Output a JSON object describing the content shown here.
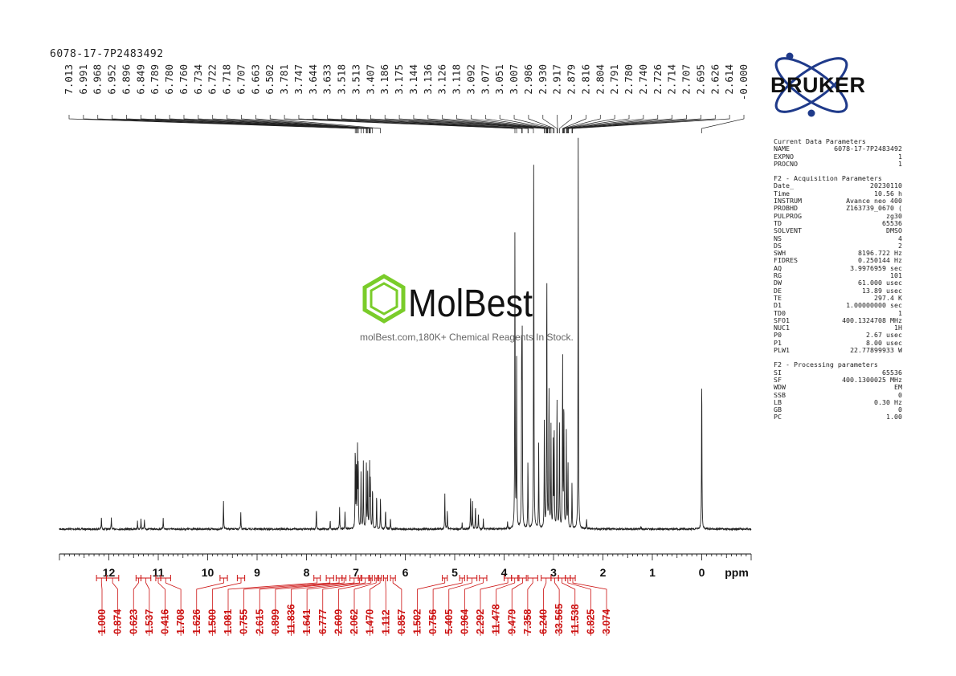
{
  "sample_title": "6078-17-7P2483492",
  "peak_labels": [
    "7.013",
    "6.991",
    "6.968",
    "6.952",
    "6.896",
    "6.849",
    "6.789",
    "6.780",
    "6.760",
    "6.734",
    "6.722",
    "6.718",
    "6.707",
    "6.663",
    "6.502",
    "3.781",
    "3.747",
    "3.644",
    "3.633",
    "3.518",
    "3.513",
    "3.407",
    "3.186",
    "3.175",
    "3.144",
    "3.136",
    "3.126",
    "3.118",
    "3.092",
    "3.077",
    "3.051",
    "3.007",
    "2.986",
    "2.930",
    "2.917",
    "2.879",
    "2.816",
    "2.804",
    "2.791",
    "2.780",
    "2.740",
    "2.726",
    "2.714",
    "2.707",
    "2.695",
    "2.626",
    "2.614",
    "-0.000"
  ],
  "integrals": [
    {
      "value": "1.000",
      "from": 12.25,
      "to": 12.05
    },
    {
      "value": "0.874",
      "from": 12.05,
      "to": 11.8
    },
    {
      "value": "0.623",
      "from": 11.45,
      "to": 11.35
    },
    {
      "value": "1.537",
      "from": 11.35,
      "to": 11.15
    },
    {
      "value": "0.416",
      "from": 11.05,
      "to": 10.95
    },
    {
      "value": "1.708",
      "from": 10.95,
      "to": 10.75
    },
    {
      "value": "1.626",
      "from": 9.75,
      "to": 9.6
    },
    {
      "value": "1.500",
      "from": 9.4,
      "to": 9.25
    },
    {
      "value": "1.081",
      "from": 7.85,
      "to": 7.72
    },
    {
      "value": "0.755",
      "from": 7.6,
      "to": 7.45
    },
    {
      "value": "2.615",
      "from": 7.4,
      "to": 7.28
    },
    {
      "value": "0.899",
      "from": 7.28,
      "to": 7.2
    },
    {
      "value": "11.836",
      "from": 7.12,
      "to": 6.95
    },
    {
      "value": "1.641",
      "from": 6.95,
      "to": 6.9
    },
    {
      "value": "6.777",
      "from": 6.88,
      "to": 6.74
    },
    {
      "value": "2.609",
      "from": 6.72,
      "to": 6.67
    },
    {
      "value": "2.062",
      "from": 6.62,
      "to": 6.56
    },
    {
      "value": "1.470",
      "from": 6.54,
      "to": 6.48
    },
    {
      "value": "1.112",
      "from": 6.44,
      "to": 6.36
    },
    {
      "value": "0.857",
      "from": 6.3,
      "to": 6.2
    },
    {
      "value": "1.502",
      "from": 5.25,
      "to": 5.15
    },
    {
      "value": "0.756",
      "from": 4.9,
      "to": 4.8
    },
    {
      "value": "5.405",
      "from": 4.75,
      "to": 4.55
    },
    {
      "value": "0.964",
      "from": 4.5,
      "to": 4.35
    },
    {
      "value": "2.292",
      "from": 4.0,
      "to": 3.85
    },
    {
      "value": "11.478",
      "from": 3.85,
      "to": 3.72
    },
    {
      "value": "9.479",
      "from": 3.7,
      "to": 3.55
    },
    {
      "value": "7.358",
      "from": 3.52,
      "to": 3.32
    },
    {
      "value": "6.240",
      "from": 3.25,
      "to": 3.05
    },
    {
      "value": "33.565",
      "from": 3.05,
      "to": 2.9
    },
    {
      "value": "11.538",
      "from": 2.9,
      "to": 2.76
    },
    {
      "value": "6.825",
      "from": 2.76,
      "to": 2.66
    },
    {
      "value": "3.074",
      "from": 2.66,
      "to": 2.56
    }
  ],
  "chart_data": {
    "type": "line",
    "xlabel": "ppm",
    "xlim": [
      13.0,
      -1.0
    ],
    "x_ticks": [
      "12",
      "11",
      "10",
      "9",
      "8",
      "7",
      "6",
      "5",
      "4",
      "3",
      "2",
      "1",
      "0"
    ],
    "x_tick_values": [
      12,
      11,
      10,
      9,
      8,
      7,
      6,
      5,
      4,
      3,
      2,
      1,
      0
    ],
    "ylim": [
      0,
      1.0
    ],
    "series": [
      {
        "peaks": [
          {
            "x": 12.15,
            "y": 0.03
          },
          {
            "x": 11.95,
            "y": 0.028
          },
          {
            "x": 11.42,
            "y": 0.02
          },
          {
            "x": 11.35,
            "y": 0.025
          },
          {
            "x": 11.28,
            "y": 0.022
          },
          {
            "x": 10.9,
            "y": 0.03
          },
          {
            "x": 9.68,
            "y": 0.075
          },
          {
            "x": 9.33,
            "y": 0.045
          },
          {
            "x": 7.8,
            "y": 0.055
          },
          {
            "x": 7.52,
            "y": 0.022
          },
          {
            "x": 7.33,
            "y": 0.055
          },
          {
            "x": 7.22,
            "y": 0.045
          },
          {
            "x": 7.013,
            "y": 0.22
          },
          {
            "x": 6.991,
            "y": 0.18
          },
          {
            "x": 6.968,
            "y": 0.21
          },
          {
            "x": 6.952,
            "y": 0.17
          },
          {
            "x": 6.896,
            "y": 0.15
          },
          {
            "x": 6.849,
            "y": 0.17
          },
          {
            "x": 6.789,
            "y": 0.18
          },
          {
            "x": 6.76,
            "y": 0.15
          },
          {
            "x": 6.722,
            "y": 0.16
          },
          {
            "x": 6.707,
            "y": 0.13
          },
          {
            "x": 6.663,
            "y": 0.11
          },
          {
            "x": 6.58,
            "y": 0.09
          },
          {
            "x": 6.502,
            "y": 0.08
          },
          {
            "x": 6.4,
            "y": 0.05
          },
          {
            "x": 6.3,
            "y": 0.03
          },
          {
            "x": 5.2,
            "y": 0.09
          },
          {
            "x": 5.15,
            "y": 0.05
          },
          {
            "x": 4.85,
            "y": 0.015
          },
          {
            "x": 4.68,
            "y": 0.085
          },
          {
            "x": 4.64,
            "y": 0.07
          },
          {
            "x": 4.58,
            "y": 0.06
          },
          {
            "x": 4.52,
            "y": 0.04
          },
          {
            "x": 4.42,
            "y": 0.025
          },
          {
            "x": 3.93,
            "y": 0.02
          },
          {
            "x": 3.781,
            "y": 0.78
          },
          {
            "x": 3.747,
            "y": 0.43
          },
          {
            "x": 3.644,
            "y": 0.48
          },
          {
            "x": 3.633,
            "y": 0.45
          },
          {
            "x": 3.518,
            "y": 0.18
          },
          {
            "x": 3.4,
            "y": 1.0
          },
          {
            "x": 3.3,
            "y": 0.22
          },
          {
            "x": 3.186,
            "y": 0.28
          },
          {
            "x": 3.136,
            "y": 0.7
          },
          {
            "x": 3.092,
            "y": 0.38
          },
          {
            "x": 3.051,
            "y": 0.26
          },
          {
            "x": 3.007,
            "y": 0.22
          },
          {
            "x": 2.986,
            "y": 0.24
          },
          {
            "x": 2.93,
            "y": 0.35
          },
          {
            "x": 2.879,
            "y": 0.3
          },
          {
            "x": 2.816,
            "y": 0.45
          },
          {
            "x": 2.791,
            "y": 0.35
          },
          {
            "x": 2.74,
            "y": 0.25
          },
          {
            "x": 2.707,
            "y": 0.18
          },
          {
            "x": 2.626,
            "y": 0.12
          },
          {
            "x": 2.5,
            "y": 1.0
          },
          {
            "x": 2.33,
            "y": 0.025
          },
          {
            "x": 1.23,
            "y": 0.008
          },
          {
            "x": 0.0,
            "y": 0.42
          }
        ]
      }
    ]
  },
  "params": [
    {
      "label": "Current Data Parameters",
      "section": true
    },
    {
      "label": "NAME",
      "value": "6078-17-7P2483492"
    },
    {
      "label": "EXPNO",
      "value": "1"
    },
    {
      "label": "PROCNO",
      "value": "1"
    },
    {
      "gap": true
    },
    {
      "label": "F2 - Acquisition Parameters",
      "section": true
    },
    {
      "label": "Date_",
      "value": "20230110"
    },
    {
      "label": "Time",
      "value": "10.56 h"
    },
    {
      "label": "INSTRUM",
      "value": "Avance neo 400"
    },
    {
      "label": "PROBHD",
      "value": "Z163739_0670 ("
    },
    {
      "label": "PULPROG",
      "value": "zg30"
    },
    {
      "label": "TD",
      "value": "65536"
    },
    {
      "label": "SOLVENT",
      "value": "DMSO"
    },
    {
      "label": "NS",
      "value": "4"
    },
    {
      "label": "DS",
      "value": "2"
    },
    {
      "label": "SWH",
      "value": "8196.722 Hz"
    },
    {
      "label": "FIDRES",
      "value": "0.250144 Hz"
    },
    {
      "label": "AQ",
      "value": "3.9976959 sec"
    },
    {
      "label": "RG",
      "value": "101"
    },
    {
      "label": "DW",
      "value": "61.000 usec"
    },
    {
      "label": "DE",
      "value": "13.89 usec"
    },
    {
      "label": "TE",
      "value": "297.4 K"
    },
    {
      "label": "D1",
      "value": "1.00000000 sec"
    },
    {
      "label": "TD0",
      "value": "1"
    },
    {
      "label": "SFO1",
      "value": "400.1324708 MHz"
    },
    {
      "label": "NUC1",
      "value": "1H"
    },
    {
      "label": "P0",
      "value": "2.67 usec"
    },
    {
      "label": "P1",
      "value": "8.00 usec"
    },
    {
      "label": "PLW1",
      "value": "22.77899933 W"
    },
    {
      "gap": true
    },
    {
      "label": "F2 - Processing parameters",
      "section": true
    },
    {
      "label": "SI",
      "value": "65536"
    },
    {
      "label": "SF",
      "value": "400.1300025 MHz"
    },
    {
      "label": "WDW",
      "value": "EM"
    },
    {
      "label": "SSB",
      "value": "0"
    },
    {
      "label": "LB",
      "value": "0.30 Hz"
    },
    {
      "label": "GB",
      "value": "0"
    },
    {
      "label": "PC",
      "value": "1.00"
    }
  ],
  "logo": {
    "text": "BRUKER",
    "color": "#1f3a8a"
  },
  "watermark": {
    "brand": "MolBest",
    "caption": "molBest.com,180K+ Chemical Reagents In Stock.",
    "color": "#7acc2a"
  },
  "colors": {
    "spectrum": "#222222",
    "integral": "#cc1111"
  }
}
